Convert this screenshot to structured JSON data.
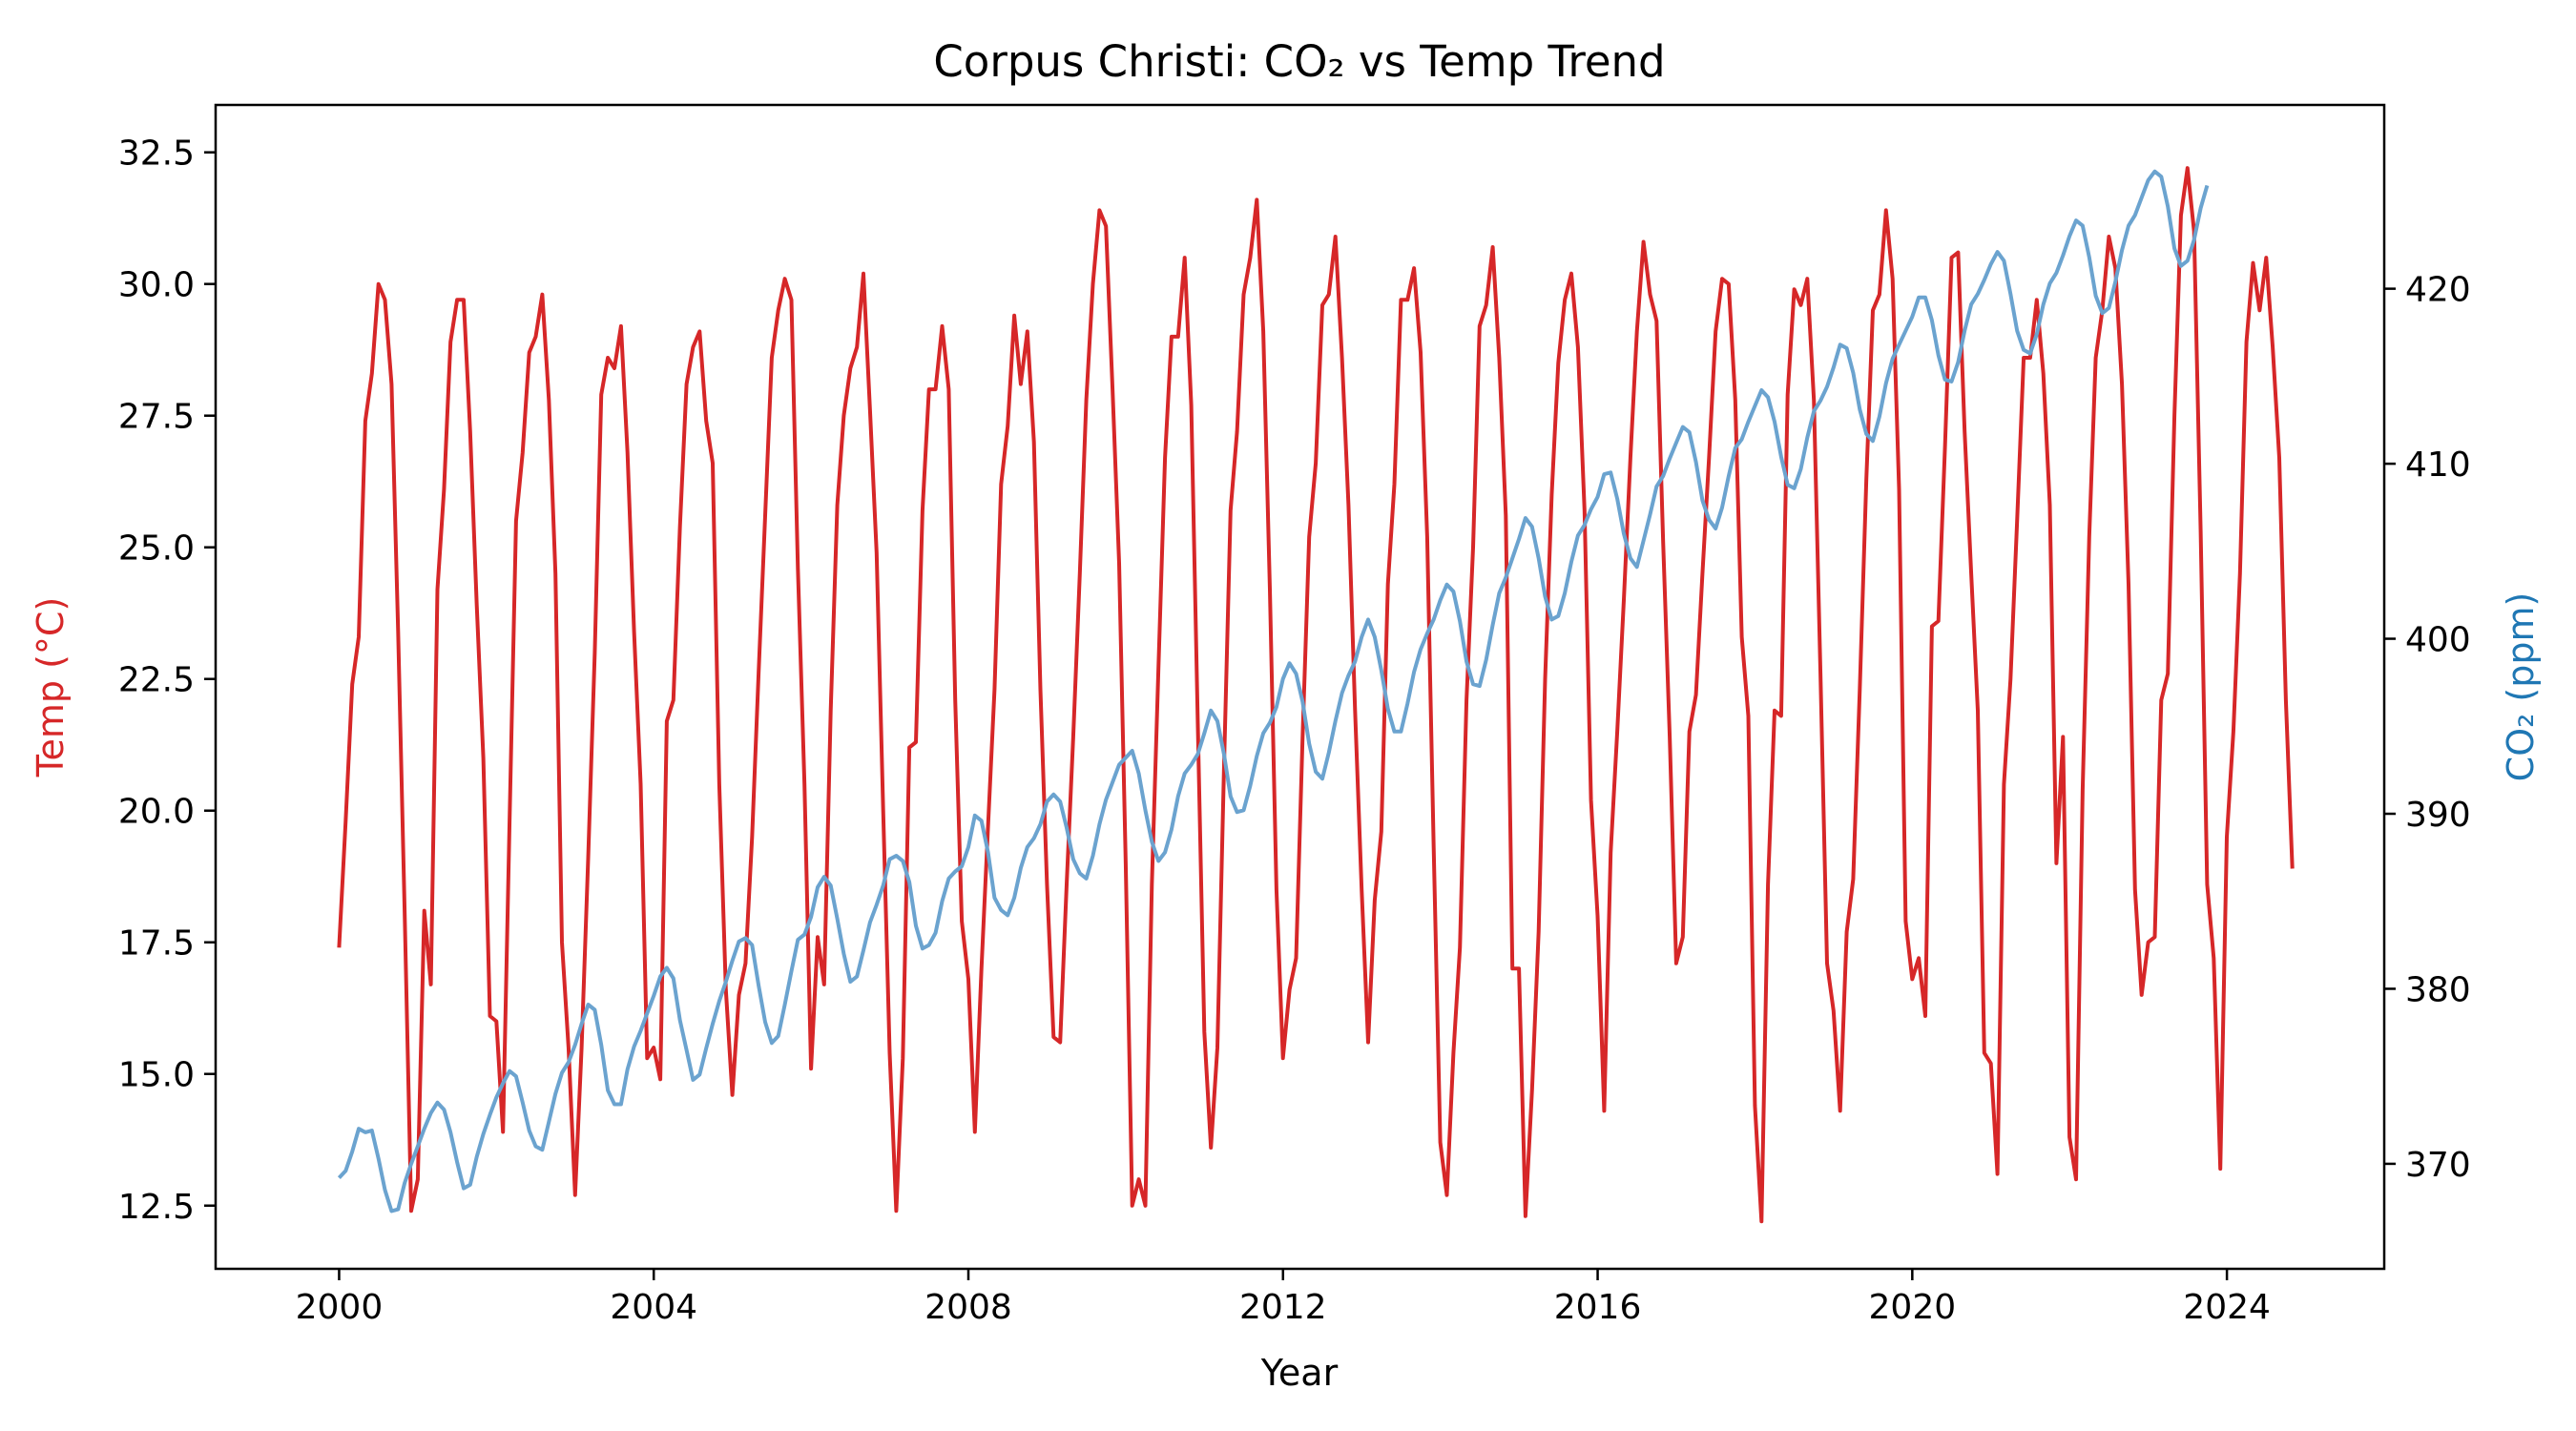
{
  "chart_data": {
    "type": "line",
    "title": "Corpus Christi: CO₂ vs Temp Trend",
    "xlabel": "Year",
    "y1label": "Temp (°C)",
    "y2label": "CO₂ (ppm)",
    "xlim": [
      1998.43,
      2026.0
    ],
    "y1lim": [
      11.3,
      33.4
    ],
    "y2lim": [
      364.0,
      430.5
    ],
    "x_ticks": [
      2000,
      2004,
      2008,
      2012,
      2016,
      2020,
      2024
    ],
    "y1_ticks": [
      "12.5",
      "15.0",
      "17.5",
      "20.0",
      "22.5",
      "25.0",
      "27.5",
      "30.0",
      "32.5"
    ],
    "y2_ticks": [
      "370",
      "380",
      "390",
      "400",
      "410",
      "420"
    ],
    "grid": false,
    "series": [
      {
        "name": "Temp (°C)",
        "axis": "left",
        "color": "#d62728",
        "x_start": 2000.0,
        "x_step": 0.08333,
        "values": [
          17.4,
          19.8,
          22.4,
          23.3,
          27.4,
          28.3,
          30.0,
          29.7,
          28.1,
          23.4,
          18.1,
          12.4,
          13.0,
          18.1,
          16.7,
          24.2,
          26.1,
          28.9,
          29.7,
          29.7,
          27.2,
          23.9,
          21.0,
          16.1,
          16.0,
          13.9,
          19.8,
          25.5,
          26.8,
          28.7,
          29.0,
          29.8,
          27.8,
          24.5,
          17.5,
          15.5,
          12.7,
          15.5,
          19.1,
          23.0,
          27.9,
          28.6,
          28.4,
          29.2,
          26.8,
          23.4,
          20.5,
          15.3,
          15.5,
          14.9,
          21.7,
          22.1,
          25.4,
          28.1,
          28.8,
          29.1,
          27.4,
          26.6,
          20.5,
          16.6,
          14.6,
          16.5,
          17.1,
          19.5,
          22.6,
          25.6,
          28.6,
          29.5,
          30.1,
          29.7,
          24.6,
          20.5,
          15.1,
          17.6,
          16.7,
          21.9,
          25.8,
          27.5,
          28.4,
          28.8,
          30.2,
          27.6,
          24.9,
          20.0,
          15.4,
          12.4,
          15.3,
          21.2,
          21.3,
          25.7,
          28.0,
          28.0,
          29.2,
          28.0,
          22.1,
          17.9,
          16.8,
          13.9,
          17.0,
          19.7,
          22.3,
          26.2,
          27.3,
          29.4,
          28.1,
          29.1,
          27.0,
          22.3,
          18.6,
          15.7,
          15.6,
          18.6,
          21.4,
          24.5,
          27.8,
          30.0,
          31.4,
          31.1,
          28.0,
          24.7,
          19.0,
          12.5,
          13.0,
          12.5,
          18.6,
          22.7,
          26.7,
          29.0,
          29.0,
          30.5,
          27.7,
          21.7,
          15.8,
          13.6,
          15.5,
          20.8,
          25.7,
          27.2,
          29.8,
          30.5,
          31.6,
          29.1,
          24.2,
          18.5,
          15.3,
          16.6,
          17.2,
          21.4,
          25.2,
          26.6,
          29.6,
          29.8,
          30.9,
          28.6,
          25.8,
          21.9,
          18.5,
          15.6,
          18.3,
          19.6,
          24.3,
          26.2,
          29.7,
          29.7,
          30.3,
          28.7,
          25.2,
          19.3,
          13.7,
          12.7,
          15.4,
          17.4,
          22.1,
          25.0,
          29.2,
          29.6,
          30.7,
          28.6,
          25.6,
          17.0,
          17.0,
          12.3,
          14.7,
          17.7,
          22.5,
          26.0,
          28.5,
          29.7,
          30.2,
          28.8,
          25.7,
          20.2,
          18.0,
          14.3,
          19.2,
          21.5,
          24.0,
          26.7,
          29.1,
          30.8,
          29.8,
          29.3,
          25.1,
          21.4,
          17.1,
          17.6,
          21.5,
          22.2,
          24.5,
          26.7,
          29.1,
          30.1,
          30.0,
          27.8,
          23.3,
          21.8,
          14.4,
          12.2,
          18.6,
          21.9,
          21.8,
          27.9,
          29.9,
          29.6,
          30.1,
          27.8,
          22.6,
          17.1,
          16.2,
          14.3,
          17.7,
          18.7,
          22.3,
          26.3,
          29.5,
          29.8,
          31.4,
          30.1,
          26.1,
          17.9,
          16.8,
          17.2,
          16.1,
          23.5,
          23.6,
          26.9,
          30.5,
          30.6,
          27.2,
          24.5,
          21.9,
          15.4,
          15.2,
          13.1,
          20.5,
          22.5,
          25.5,
          28.6,
          28.6,
          29.7,
          28.3,
          25.8,
          19.0,
          21.4,
          13.8,
          13.0,
          20.4,
          25.2,
          28.6,
          29.5,
          30.9,
          30.3,
          28.1,
          24.3,
          18.5,
          16.5,
          17.5,
          17.6,
          22.1,
          22.6,
          27.5,
          31.3,
          32.2,
          31.0,
          25.3,
          18.6,
          17.2,
          13.2,
          19.5,
          21.5,
          24.5,
          28.9,
          30.4,
          29.5,
          30.5,
          28.8,
          26.7,
          22.1,
          18.9
        ]
      },
      {
        "name": "CO₂ (ppm)",
        "axis": "right",
        "color": "#6ba3cf",
        "x_start": 2000.0,
        "x_step": 0.08333,
        "values": [
          369.2,
          369.6,
          370.7,
          372.0,
          371.8,
          371.9,
          370.3,
          368.5,
          367.3,
          367.4,
          368.9,
          370.0,
          371.0,
          372.0,
          372.9,
          373.5,
          373.1,
          371.8,
          370.1,
          368.6,
          368.8,
          370.4,
          371.7,
          372.8,
          373.8,
          374.6,
          375.3,
          375.0,
          373.5,
          371.9,
          371.0,
          370.8,
          372.4,
          374.0,
          375.2,
          375.8,
          376.8,
          378.0,
          379.1,
          378.8,
          376.8,
          374.2,
          373.4,
          373.4,
          375.4,
          376.7,
          377.6,
          378.6,
          379.6,
          380.7,
          381.2,
          380.6,
          378.2,
          376.5,
          374.8,
          375.1,
          376.6,
          378.0,
          379.3,
          380.4,
          381.6,
          382.7,
          382.9,
          382.5,
          380.2,
          378.1,
          376.9,
          377.3,
          379.1,
          381.0,
          382.8,
          383.1,
          384.1,
          385.8,
          386.4,
          385.9,
          384.0,
          382.0,
          380.4,
          380.7,
          382.2,
          383.8,
          384.8,
          385.9,
          387.4,
          387.6,
          387.3,
          386.1,
          383.6,
          382.3,
          382.5,
          383.2,
          385.0,
          386.3,
          386.7,
          387.0,
          388.1,
          389.9,
          389.6,
          387.8,
          385.2,
          384.5,
          384.2,
          385.2,
          386.9,
          388.1,
          388.6,
          389.4,
          390.7,
          391.1,
          390.7,
          389.2,
          387.4,
          386.6,
          386.3,
          387.6,
          389.4,
          390.8,
          391.8,
          392.8,
          393.2,
          393.6,
          392.3,
          390.2,
          388.4,
          387.3,
          387.8,
          389.1,
          391.0,
          392.3,
          392.8,
          393.4,
          394.6,
          395.9,
          395.3,
          393.4,
          391.0,
          390.1,
          390.2,
          391.6,
          393.3,
          394.6,
          395.2,
          396.1,
          397.7,
          398.6,
          398.0,
          396.4,
          394.0,
          392.4,
          392.0,
          393.5,
          395.3,
          396.9,
          397.9,
          398.7,
          400.1,
          401.1,
          400.1,
          398.2,
          396.0,
          394.7,
          394.7,
          396.3,
          398.1,
          399.4,
          400.3,
          401.1,
          402.2,
          403.1,
          402.7,
          401.0,
          398.7,
          397.4,
          397.3,
          398.8,
          400.8,
          402.6,
          403.5,
          404.6,
          405.7,
          406.9,
          406.4,
          404.6,
          402.4,
          401.1,
          401.3,
          402.6,
          404.4,
          405.9,
          406.5,
          407.4,
          408.1,
          409.4,
          409.5,
          408.0,
          406.0,
          404.6,
          404.1,
          405.6,
          407.1,
          408.7,
          409.3,
          410.3,
          411.2,
          412.1,
          411.8,
          410.1,
          407.9,
          406.8,
          406.3,
          407.5,
          409.3,
          410.9,
          411.4,
          412.4,
          413.3,
          414.2,
          413.8,
          412.4,
          410.4,
          408.8,
          408.6,
          409.7,
          411.5,
          413.0,
          413.6,
          414.4,
          415.5,
          416.8,
          416.6,
          415.2,
          413.1,
          411.7,
          411.3,
          412.7,
          414.6,
          416.0,
          416.8,
          417.6,
          418.4,
          419.5,
          419.5,
          418.2,
          416.2,
          414.8,
          414.7,
          415.8,
          417.6,
          419.1,
          419.7,
          420.5,
          421.4,
          422.1,
          421.6,
          419.7,
          417.6,
          416.5,
          416.3,
          417.4,
          419.1,
          420.3,
          420.9,
          421.9,
          423.0,
          423.9,
          423.6,
          421.8,
          419.6,
          418.6,
          418.9,
          420.4,
          422.2,
          423.6,
          424.2,
          425.2,
          426.2,
          426.7,
          426.4,
          424.7,
          422.3,
          421.3,
          421.6,
          422.8,
          424.6,
          425.9
        ]
      }
    ]
  }
}
